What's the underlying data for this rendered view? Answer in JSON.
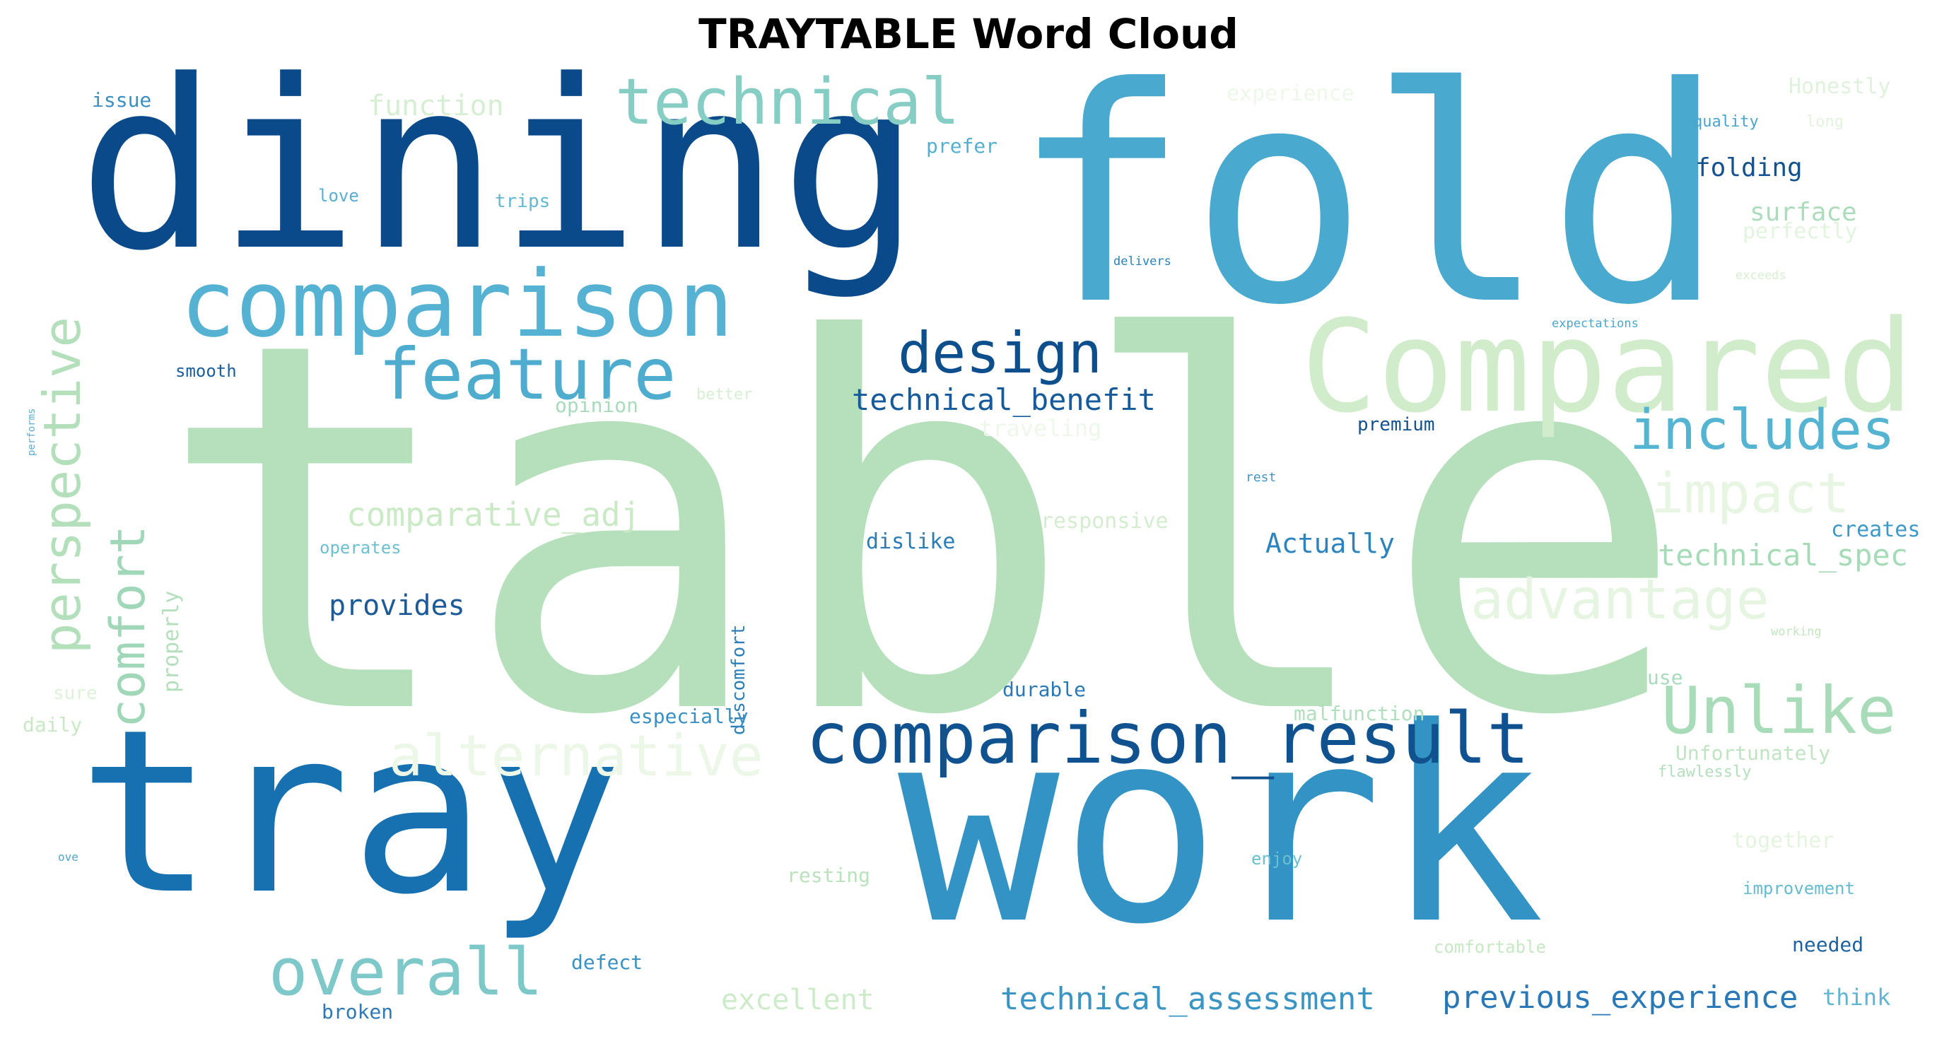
{
  "title": "TRAYTABLE Word Cloud",
  "words": [
    {
      "text": "table",
      "color": "#b5e0bb"
    },
    {
      "text": "dining",
      "color": "#0b4a8a"
    },
    {
      "text": "fold",
      "color": "#49a9cf"
    },
    {
      "text": "tray",
      "color": "#1771b1"
    },
    {
      "text": "work",
      "color": "#3293c4"
    },
    {
      "text": "Compared",
      "color": "#d1ecca"
    },
    {
      "text": "comparison",
      "color": "#55b2d3"
    },
    {
      "text": "technical",
      "color": "#86cdc3"
    },
    {
      "text": "feature",
      "color": "#4eaccf"
    },
    {
      "text": "design",
      "color": "#0d4e8c"
    },
    {
      "text": "includes",
      "color": "#56b4d3"
    },
    {
      "text": "comparison_result",
      "color": "#0f528f"
    },
    {
      "text": "Unlike",
      "color": "#a8dcb8"
    },
    {
      "text": "overall",
      "color": "#7ec8c9"
    },
    {
      "text": "alternative",
      "color": "#ecf7e8"
    },
    {
      "text": "perspective",
      "color": "#b3dfbb"
    },
    {
      "text": "comfort",
      "color": "#9fd7b8"
    },
    {
      "text": "impact",
      "color": "#e8f5e3"
    },
    {
      "text": "advantage",
      "color": "#e6f5e1"
    },
    {
      "text": "technical_benefit",
      "color": "#155a9a"
    },
    {
      "text": "technical_spec",
      "color": "#a6dbb8"
    },
    {
      "text": "comparative_adj",
      "color": "#caeac6"
    },
    {
      "text": "provides",
      "color": "#1d5a98"
    },
    {
      "text": "Actually",
      "color": "#2b84bd"
    },
    {
      "text": "technical_assessment",
      "color": "#3a94c4"
    },
    {
      "text": "previous_experience",
      "color": "#2a78b6"
    },
    {
      "text": "excellent",
      "color": "#ccebc8"
    },
    {
      "text": "function",
      "color": "#d6efd2"
    },
    {
      "text": "issue",
      "color": "#3c8fc3"
    },
    {
      "text": "experience",
      "color": "#eef8ea"
    },
    {
      "text": "Honestly",
      "color": "#e0f2db"
    },
    {
      "text": "quality",
      "color": "#4aa4cd"
    },
    {
      "text": "long",
      "color": "#e3f3de"
    },
    {
      "text": "prefer",
      "color": "#56afd1"
    },
    {
      "text": "folding",
      "color": "#14528f"
    },
    {
      "text": "surface",
      "color": "#acdcbc"
    },
    {
      "text": "perfectly",
      "color": "#e3f4de"
    },
    {
      "text": "love",
      "color": "#5aaed0"
    },
    {
      "text": "trips",
      "color": "#62b8d2"
    },
    {
      "text": "delivers",
      "color": "#2c7fb8"
    },
    {
      "text": "exceeds",
      "color": "#d8efd0"
    },
    {
      "text": "expectations",
      "color": "#4ba6ce"
    },
    {
      "text": "smooth",
      "color": "#1a5e9c"
    },
    {
      "text": "opinion",
      "color": "#a7dbbb"
    },
    {
      "text": "better",
      "color": "#d7efd2"
    },
    {
      "text": "traveling",
      "color": "#eef8ea"
    },
    {
      "text": "premium",
      "color": "#14528f"
    },
    {
      "text": "rest",
      "color": "#4196c7"
    },
    {
      "text": "responsive",
      "color": "#d3edce"
    },
    {
      "text": "creates",
      "color": "#3d9ac8"
    },
    {
      "text": "dislike",
      "color": "#2a7cb7"
    },
    {
      "text": "operates",
      "color": "#6cbfcf"
    },
    {
      "text": "properly",
      "color": "#b4dfbc"
    },
    {
      "text": "discomfort",
      "color": "#2e7fb8"
    },
    {
      "text": "durable",
      "color": "#2a78b6"
    },
    {
      "text": "especially",
      "color": "#3a90c3"
    },
    {
      "text": "malfunction",
      "color": "#b1dfbe"
    },
    {
      "text": "use",
      "color": "#a6dbbc"
    },
    {
      "text": "Unfortunately",
      "color": "#bfe4c2"
    },
    {
      "text": "flawlessly",
      "color": "#b3dfbc"
    },
    {
      "text": "working",
      "color": "#c3e6c1"
    },
    {
      "text": "sure",
      "color": "#def2d9"
    },
    {
      "text": "daily",
      "color": "#c8e9c4"
    },
    {
      "text": "resting",
      "color": "#b9e2bd"
    },
    {
      "text": "enjoy",
      "color": "#6bbfcf"
    },
    {
      "text": "together",
      "color": "#e4f4df"
    },
    {
      "text": "improvement",
      "color": "#66bccf"
    },
    {
      "text": "defect",
      "color": "#3a92c4"
    },
    {
      "text": "needed",
      "color": "#1d63a2"
    },
    {
      "text": "comfortable",
      "color": "#c6e8c3"
    },
    {
      "text": "broken",
      "color": "#2e79b5"
    },
    {
      "text": "think",
      "color": "#5fb5d2"
    },
    {
      "text": "ove",
      "color": "#4da7cd"
    },
    {
      "text": "performs",
      "color": "#5aaecf"
    }
  ]
}
